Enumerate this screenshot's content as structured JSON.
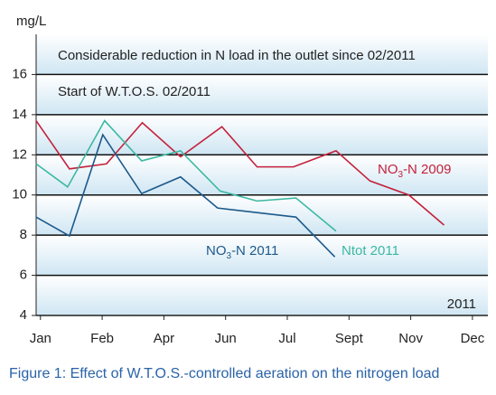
{
  "chart_data": {
    "type": "line",
    "y_label": "mg/L",
    "annotations": [
      "Considerable reduction in N load in the outlet since 02/2011",
      "Start of W.T.O.S. 02/2011",
      "2011"
    ],
    "caption": "Figure 1: Effect of W.T.O.S.-controlled aeration on the nitrogen load",
    "xlim": [
      -0.07,
      7.25
    ],
    "xticks": [
      {
        "value": 0,
        "label": "Jan"
      },
      {
        "value": 1,
        "label": "Feb"
      },
      {
        "value": 2,
        "label": "Apr"
      },
      {
        "value": 3,
        "label": "Jun"
      },
      {
        "value": 4,
        "label": "Jul"
      },
      {
        "value": 5,
        "label": "Sept"
      },
      {
        "value": 6,
        "label": "Nov"
      },
      {
        "value": 7,
        "label": "Dec"
      }
    ],
    "ylim": [
      4,
      18
    ],
    "yticks": [
      4,
      6,
      8,
      10,
      12,
      14,
      16
    ],
    "grid": true,
    "series": [
      {
        "name": "NO3-N 2009",
        "color": "#c4213b",
        "x": [
          -0.07,
          0.47,
          1.07,
          1.65,
          2.27,
          2.94,
          3.51,
          4.1,
          4.79,
          5.34,
          5.97,
          6.54
        ],
        "values": [
          13.7,
          11.3,
          11.55,
          13.6,
          11.9,
          13.4,
          11.4,
          11.4,
          12.2,
          10.7,
          10.0,
          8.5
        ]
      },
      {
        "name": "Ntot 2011",
        "color": "#3cb8a2",
        "x": [
          -0.07,
          0.44,
          1.04,
          1.64,
          2.27,
          2.91,
          3.51,
          4.14,
          4.79
        ],
        "values": [
          11.55,
          10.4,
          13.7,
          11.7,
          12.2,
          10.2,
          9.7,
          9.85,
          8.2
        ]
      },
      {
        "name": "NO3-N 2011",
        "color": "#1d5a8c",
        "x": [
          -0.07,
          0.47,
          1.01,
          1.64,
          2.27,
          2.87,
          4.14,
          4.77
        ],
        "values": [
          8.9,
          7.96,
          13.0,
          10.07,
          10.9,
          9.35,
          8.9,
          6.92
        ]
      }
    ]
  }
}
